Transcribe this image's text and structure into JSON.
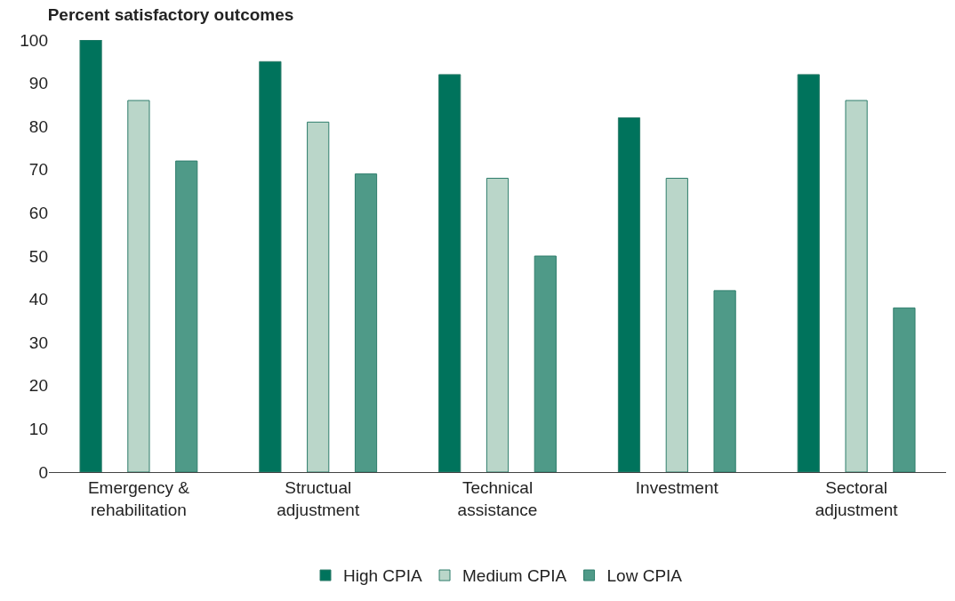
{
  "chart_data": {
    "type": "bar",
    "title": "Percent satisfactory outcomes",
    "categories": [
      "Emergency &\nrehabilitation",
      "Structual\nadjustment",
      "Technical\nassistance",
      "Investment",
      "Sectoral\nadjustment"
    ],
    "series": [
      {
        "name": "High CPIA",
        "color": "#00735c",
        "values": [
          100,
          95,
          92,
          82,
          92
        ]
      },
      {
        "name": "Medium CPIA",
        "color": "#bad6c9",
        "values": [
          86,
          81,
          68,
          68,
          86
        ]
      },
      {
        "name": "Low CPIA",
        "color": "#4f9a88",
        "values": [
          72,
          69,
          50,
          42,
          38
        ]
      }
    ],
    "ylim": [
      0,
      100
    ],
    "yticks": [
      0,
      10,
      20,
      30,
      40,
      50,
      60,
      70,
      80,
      90,
      100
    ],
    "grid": false,
    "legend": "bottom"
  }
}
